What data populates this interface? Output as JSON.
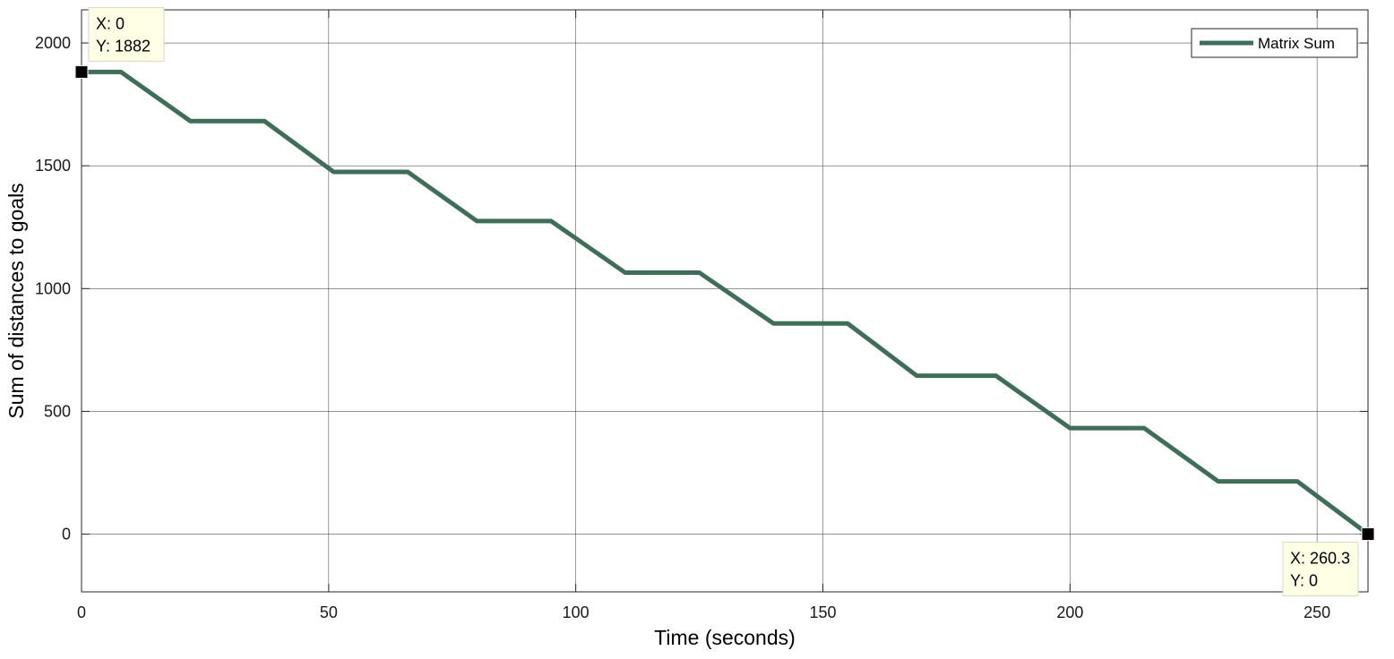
{
  "chart_data": {
    "type": "line",
    "title": "",
    "xlabel": "Time (seconds)",
    "ylabel": "Sum of distances to goals",
    "xlim": [
      0,
      260.3
    ],
    "ylim": [
      -235,
      2135
    ],
    "xticks": [
      0,
      50,
      100,
      150,
      200,
      250
    ],
    "yticks": [
      0,
      500,
      1000,
      1500,
      2000
    ],
    "x_tick_labels": [
      "0",
      "50",
      "100",
      "150",
      "200",
      "250"
    ],
    "y_tick_labels": [
      "0",
      "500",
      "1000",
      "1500",
      "2000"
    ],
    "grid": true,
    "legend_position": "top-right",
    "series": [
      {
        "name": "Matrix Sum",
        "color": "#3f6e58",
        "x": [
          0,
          8,
          22,
          37,
          51,
          66,
          80,
          95,
          110,
          125,
          140,
          155,
          169,
          185,
          200,
          215,
          230,
          246,
          260.3
        ],
        "y": [
          1882,
          1882,
          1682,
          1682,
          1475,
          1475,
          1275,
          1275,
          1065,
          1065,
          858,
          858,
          645,
          645,
          432,
          432,
          215,
          215,
          0
        ]
      }
    ],
    "annotations": [
      {
        "x": 0,
        "y": 1882,
        "line1": "X: 0",
        "line2": "Y: 1882",
        "placement": "upper-right"
      },
      {
        "x": 260.3,
        "y": 0,
        "line1": "X: 260.3",
        "line2": "Y: 0",
        "placement": "lower-left"
      }
    ]
  }
}
